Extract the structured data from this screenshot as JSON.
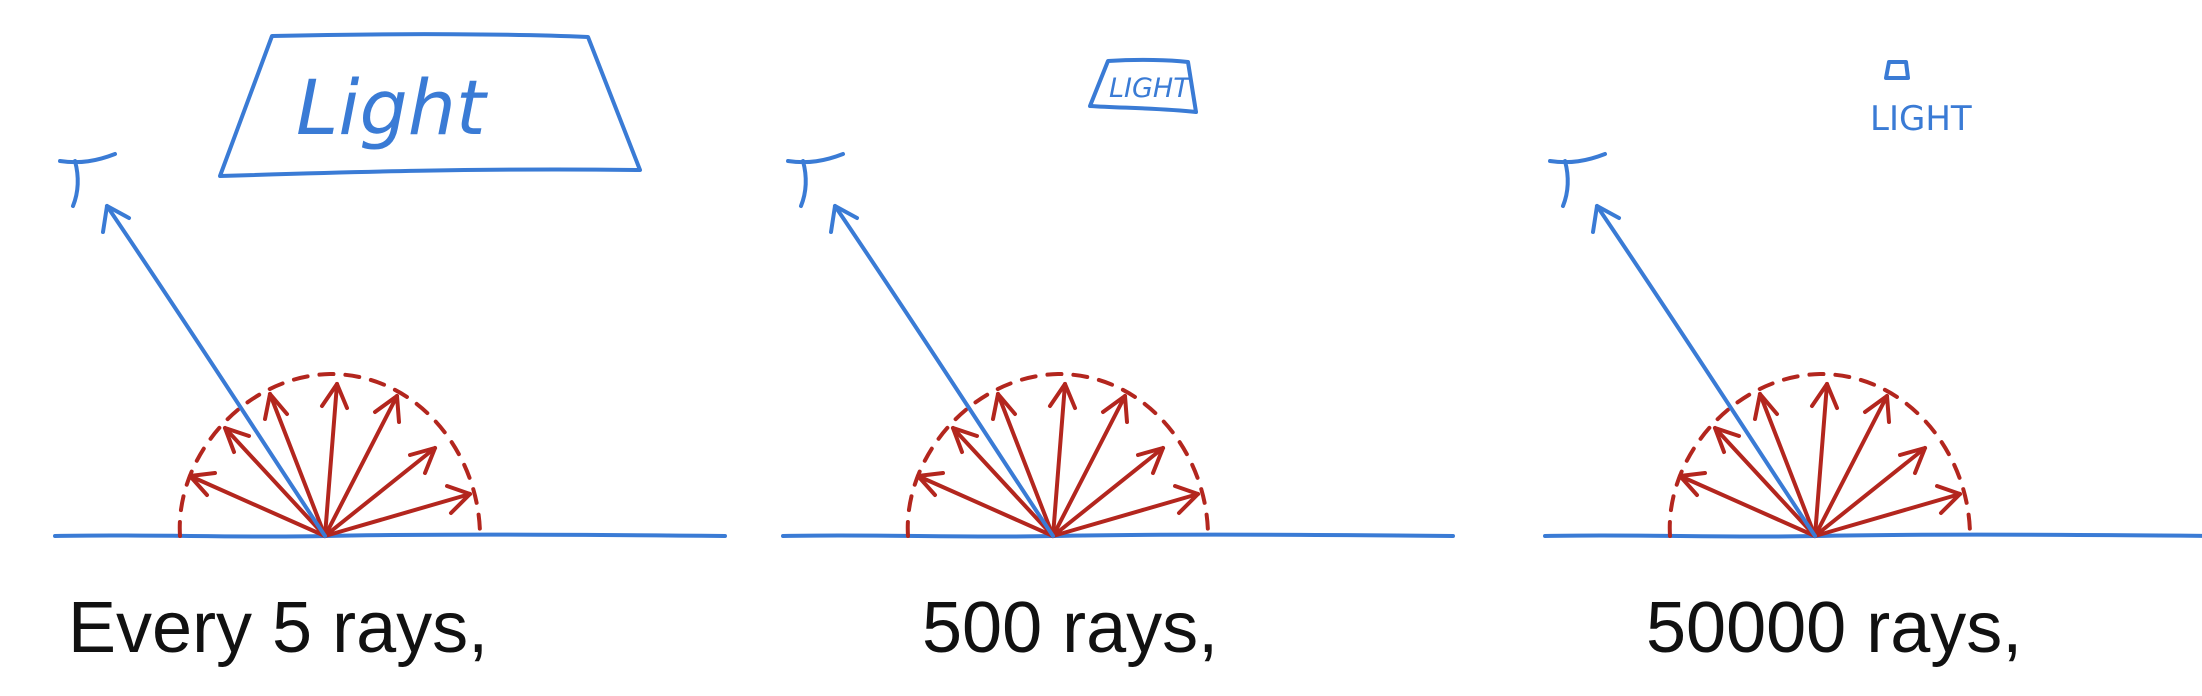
{
  "panels": [
    {
      "light_label": "Light",
      "caption": "Every 5 rays,"
    },
    {
      "light_label": "LIGHT",
      "caption": "500 rays,"
    },
    {
      "light_label": "LIGHT",
      "caption": "50000 rays,"
    }
  ],
  "colors": {
    "sketch_blue": "#3a7bd5",
    "sketch_red": "#b3261e",
    "caption_text": "#111111"
  }
}
